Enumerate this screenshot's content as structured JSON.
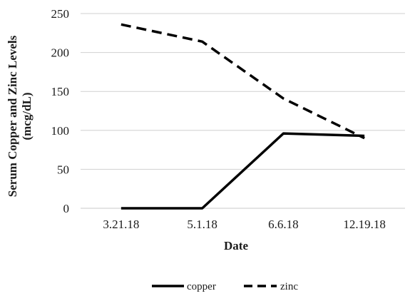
{
  "chart_data": {
    "type": "line",
    "categories": [
      "3.21.18",
      "5.1.18",
      "6.6.18",
      "12.19.18"
    ],
    "series": [
      {
        "name": "copper",
        "values": [
          0,
          0,
          96,
          93
        ],
        "color": "#000000",
        "dash": "solid"
      },
      {
        "name": "zinc",
        "values": [
          236,
          214,
          141,
          90
        ],
        "color": "#000000",
        "dash": "dashed"
      }
    ],
    "xlabel": "Date",
    "ylabel_lines": [
      "Serum Copper and Zinc Levels",
      "(mcg/dL)"
    ],
    "ylim": [
      0,
      250
    ],
    "yticks": [
      0,
      50,
      100,
      150,
      200,
      250
    ],
    "grid": true,
    "legend": "bottom-center"
  }
}
